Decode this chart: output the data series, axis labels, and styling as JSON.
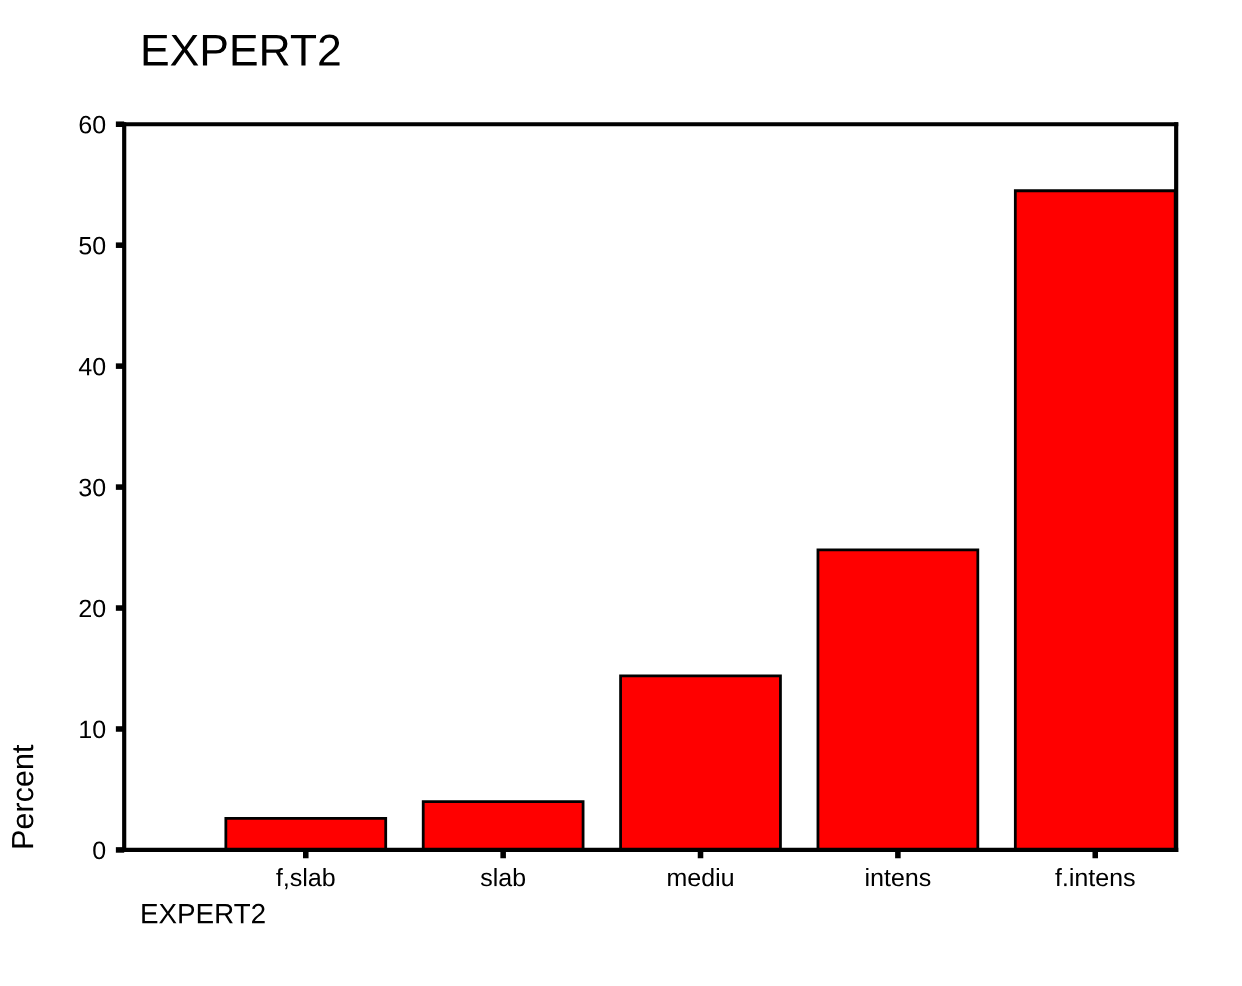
{
  "chart_data": {
    "type": "bar",
    "title": "EXPERT2",
    "ylabel": "Percent",
    "categories": [
      "f,slab",
      "slab",
      "mediu",
      "intens",
      "f.intens"
    ],
    "values": [
      2.6,
      4.0,
      14.4,
      24.8,
      54.5
    ],
    "color": "#ff0000",
    "ylim": [
      0,
      60
    ],
    "yticks": [
      0,
      10,
      20,
      30,
      40,
      50,
      60
    ],
    "annotations": [
      "EXPERT2"
    ]
  }
}
